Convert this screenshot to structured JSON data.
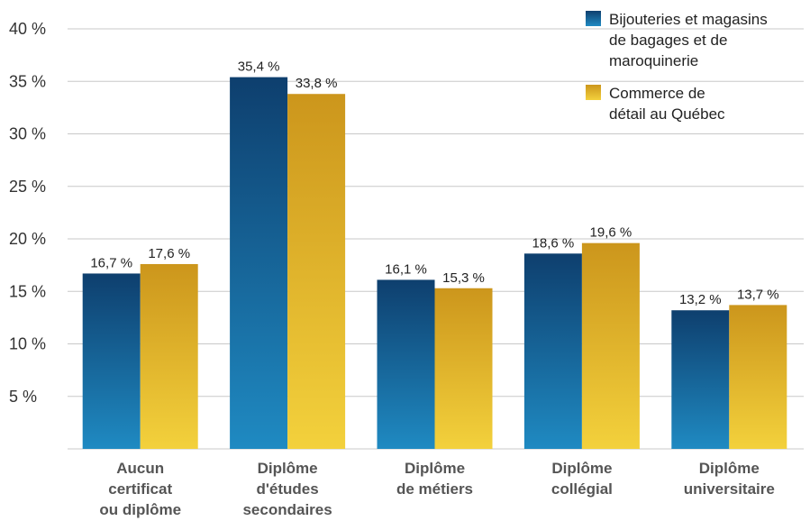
{
  "chart_data": {
    "type": "bar",
    "categories": [
      [
        "Aucun",
        "certificat",
        "ou diplôme"
      ],
      [
        "Diplôme",
        "d'études",
        "secondaires"
      ],
      [
        "Diplôme",
        "de métiers"
      ],
      [
        "Diplôme",
        "collégial"
      ],
      [
        "Diplôme",
        "universitaire"
      ]
    ],
    "series": [
      {
        "name": "Bijouteries et magasins de bagages et de maroquinerie",
        "values": [
          16.7,
          35.4,
          16.1,
          18.6,
          13.2
        ],
        "labels": [
          "16,7 %",
          "35,4 %",
          "16,1 %",
          "18,6 %",
          "13,2 %"
        ],
        "color": "#1a5a8a"
      },
      {
        "name": "Commerce de détail au Québec",
        "values": [
          17.6,
          33.8,
          15.3,
          19.6,
          13.7
        ],
        "labels": [
          "17,6 %",
          "33,8 %",
          "15,3 %",
          "19,6 %",
          "13,7 %"
        ],
        "color": "#d9a520"
      }
    ],
    "legend": {
      "position": "top-right",
      "entries": [
        [
          "Bijouteries et magasins",
          "de bagages et de",
          "maroquinerie"
        ],
        [
          "Commerce de",
          "détail au Québec"
        ]
      ]
    },
    "ylim": [
      0,
      40
    ],
    "yticks": [
      5,
      10,
      15,
      20,
      25,
      30,
      35,
      40
    ],
    "ytick_labels": [
      "5 %",
      "10 %",
      "15 %",
      "20 %",
      "25 %",
      "30 %",
      "35 %",
      "40 %"
    ],
    "grid": true,
    "title": "",
    "xlabel": "",
    "ylabel": ""
  }
}
